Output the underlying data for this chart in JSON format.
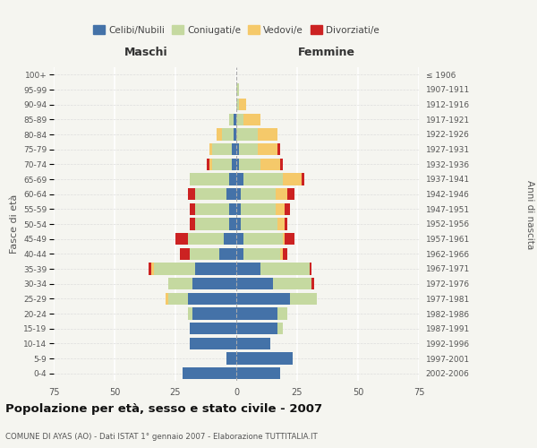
{
  "age_groups": [
    "0-4",
    "5-9",
    "10-14",
    "15-19",
    "20-24",
    "25-29",
    "30-34",
    "35-39",
    "40-44",
    "45-49",
    "50-54",
    "55-59",
    "60-64",
    "65-69",
    "70-74",
    "75-79",
    "80-84",
    "85-89",
    "90-94",
    "95-99",
    "100+"
  ],
  "birth_years": [
    "2002-2006",
    "1997-2001",
    "1992-1996",
    "1987-1991",
    "1982-1986",
    "1977-1981",
    "1972-1976",
    "1967-1971",
    "1962-1966",
    "1957-1961",
    "1952-1956",
    "1947-1951",
    "1942-1946",
    "1937-1941",
    "1932-1936",
    "1927-1931",
    "1922-1926",
    "1917-1921",
    "1912-1916",
    "1907-1911",
    "≤ 1906"
  ],
  "males": {
    "celibi": [
      22,
      4,
      19,
      19,
      18,
      20,
      18,
      17,
      7,
      5,
      3,
      3,
      4,
      3,
      2,
      2,
      1,
      1,
      0,
      0,
      0
    ],
    "coniugati": [
      0,
      0,
      0,
      0,
      2,
      8,
      10,
      17,
      12,
      15,
      14,
      14,
      13,
      16,
      8,
      8,
      5,
      2,
      0,
      0,
      0
    ],
    "vedovi": [
      0,
      0,
      0,
      0,
      0,
      1,
      0,
      1,
      0,
      0,
      0,
      0,
      0,
      0,
      1,
      1,
      2,
      0,
      0,
      0,
      0
    ],
    "divorziati": [
      0,
      0,
      0,
      0,
      0,
      0,
      0,
      1,
      4,
      5,
      2,
      2,
      3,
      0,
      1,
      0,
      0,
      0,
      0,
      0,
      0
    ]
  },
  "females": {
    "nubili": [
      18,
      23,
      14,
      17,
      17,
      22,
      15,
      10,
      3,
      3,
      2,
      2,
      2,
      3,
      1,
      1,
      0,
      0,
      0,
      0,
      0
    ],
    "coniugate": [
      0,
      0,
      0,
      2,
      4,
      11,
      16,
      20,
      15,
      16,
      15,
      14,
      14,
      16,
      9,
      8,
      9,
      3,
      1,
      1,
      0
    ],
    "vedove": [
      0,
      0,
      0,
      0,
      0,
      0,
      0,
      0,
      1,
      1,
      3,
      4,
      5,
      8,
      8,
      8,
      8,
      7,
      3,
      0,
      0
    ],
    "divorziate": [
      0,
      0,
      0,
      0,
      0,
      0,
      1,
      1,
      2,
      4,
      1,
      2,
      3,
      1,
      1,
      1,
      0,
      0,
      0,
      0,
      0
    ]
  },
  "colors": {
    "celibi": "#4472a8",
    "coniugati": "#c5d9a0",
    "vedovi": "#f5c96a",
    "divorziati": "#cc2222"
  },
  "xlim": 75,
  "title": "Popolazione per età, sesso e stato civile - 2007",
  "subtitle": "COMUNE DI AYAS (AO) - Dati ISTAT 1° gennaio 2007 - Elaborazione TUTTITALIA.IT",
  "ylabel_left": "Fasce di età",
  "ylabel_right": "Anni di nascita",
  "xlabel_left": "Maschi",
  "xlabel_right": "Femmine",
  "legend_labels": [
    "Celibi/Nubili",
    "Coniugati/e",
    "Vedovi/e",
    "Divorziati/e"
  ],
  "bg_color": "#f5f5f0"
}
